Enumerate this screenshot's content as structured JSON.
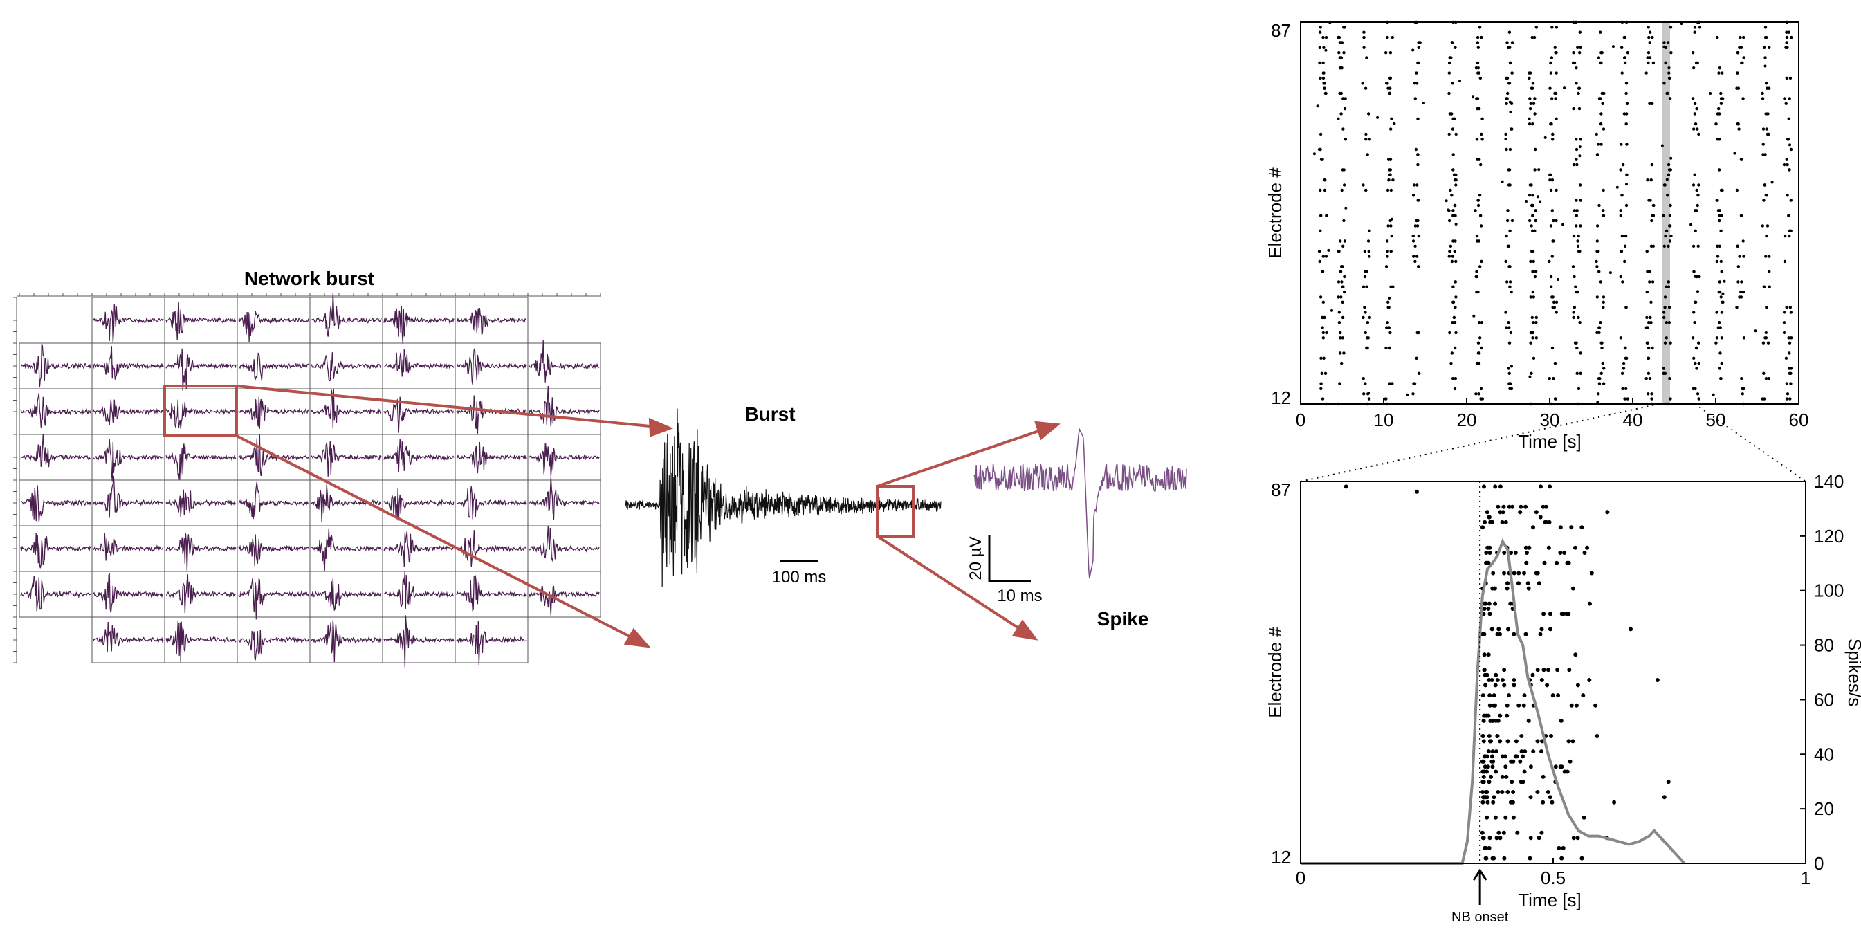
{
  "panel_a": {
    "title": "Network burst",
    "grid": {
      "rows": 8,
      "cols": 8,
      "missing_corners": true
    },
    "zoom_labels": {
      "burst": "Burst",
      "spike": "Spike"
    },
    "scale_bars": {
      "burst_time": "100 ms",
      "spike_amplitude": "20 µV",
      "spike_time": "10 ms"
    },
    "colors": {
      "accent": "#b5504a",
      "trace_grid": "#4a1f4f",
      "trace_burst": "#111111",
      "trace_spike": "#7a4f86"
    }
  },
  "chart_data": [
    {
      "type": "scatter",
      "name_hint": "raster",
      "xlabel": "Time [s]",
      "ylabel": "Electrode #",
      "xlim": [
        0,
        60
      ],
      "ylim": [
        12,
        87
      ],
      "xticks": [
        0,
        10,
        20,
        30,
        40,
        50,
        60
      ],
      "yticks": [
        12,
        87
      ],
      "burst_times": [
        2.5,
        4.8,
        7.7,
        10.5,
        13.8,
        18.1,
        21.3,
        24.9,
        27.8,
        30.2,
        33.1,
        35.9,
        38.8,
        41.9,
        44.0,
        47.5,
        50.3,
        52.8,
        55.9,
        58.5
      ],
      "highlight_band": [
        43.5,
        44.5
      ],
      "colors": {
        "dots": "#000000",
        "highlight": "#c8c8c8"
      }
    },
    {
      "type": "scatter",
      "name_hint": "network-burst-detail",
      "xlabel": "Time [s]",
      "ylabel": "Electrode #",
      "y2label": "Spikes/s",
      "xlim": [
        0,
        1
      ],
      "ylim": [
        12,
        87
      ],
      "y2lim": [
        0,
        140
      ],
      "xticks": [
        0,
        0.5,
        1
      ],
      "xticklabels": [
        "0",
        "0.5",
        "1"
      ],
      "yticks": [
        12,
        87
      ],
      "y2ticks": [
        0,
        20,
        40,
        60,
        80,
        100,
        120,
        140
      ],
      "onset_marker": {
        "x": 0.355,
        "label": "NB onset"
      },
      "rate_curve": {
        "x": [
          0.0,
          0.18,
          0.22,
          0.32,
          0.33,
          0.34,
          0.35,
          0.36,
          0.37,
          0.38,
          0.39,
          0.4,
          0.41,
          0.42,
          0.43,
          0.44,
          0.45,
          0.47,
          0.49,
          0.51,
          0.53,
          0.55,
          0.57,
          0.59,
          0.61,
          0.63,
          0.65,
          0.67,
          0.69,
          0.7,
          0.71,
          0.72,
          0.73,
          0.75,
          0.76
        ],
        "y": [
          0,
          0,
          0,
          0,
          8,
          30,
          70,
          98,
          108,
          110,
          113,
          118,
          115,
          100,
          84,
          80,
          68,
          55,
          40,
          28,
          18,
          12,
          10,
          10,
          9,
          8,
          7,
          8,
          10,
          12,
          10,
          8,
          6,
          2,
          0
        ]
      },
      "colors": {
        "dots": "#000000",
        "rate": "#888888"
      }
    }
  ]
}
